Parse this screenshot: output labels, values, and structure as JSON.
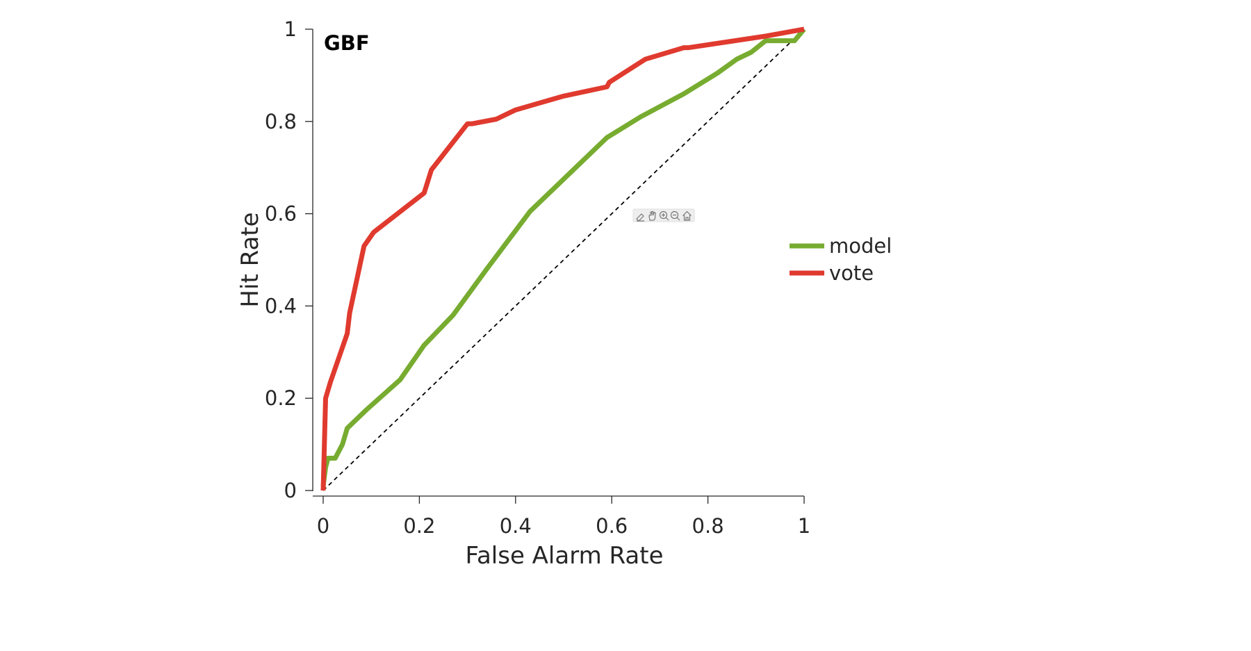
{
  "toolbar": {
    "icons": [
      "brush-icon",
      "pan-hand-icon",
      "zoom-in-icon",
      "zoom-out-icon",
      "home-icon"
    ]
  },
  "chart_data": {
    "type": "line",
    "title": "GBF",
    "xlabel": "False Alarm Rate",
    "ylabel": "Hit Rate",
    "xlim": [
      0,
      1
    ],
    "ylim": [
      0,
      1
    ],
    "xticks": [
      "0",
      "0.2",
      "0.4",
      "0.6",
      "0.8",
      "1"
    ],
    "yticks": [
      "0",
      "0.2",
      "0.4",
      "0.6",
      "0.8",
      "1"
    ],
    "grid": false,
    "legend_position": "right",
    "reference_line": {
      "style": "dashed",
      "color": "#000000",
      "points": [
        [
          0,
          0
        ],
        [
          1,
          1
        ]
      ]
    },
    "series": [
      {
        "name": "model",
        "color": "#77AC30",
        "points": [
          [
            0,
            0.01
          ],
          [
            0.005,
            0.05
          ],
          [
            0.01,
            0.07
          ],
          [
            0.025,
            0.07
          ],
          [
            0.04,
            0.1
          ],
          [
            0.05,
            0.135
          ],
          [
            0.07,
            0.155
          ],
          [
            0.09,
            0.175
          ],
          [
            0.16,
            0.24
          ],
          [
            0.21,
            0.315
          ],
          [
            0.27,
            0.38
          ],
          [
            0.34,
            0.48
          ],
          [
            0.43,
            0.605
          ],
          [
            0.51,
            0.685
          ],
          [
            0.59,
            0.765
          ],
          [
            0.66,
            0.81
          ],
          [
            0.75,
            0.86
          ],
          [
            0.82,
            0.905
          ],
          [
            0.86,
            0.935
          ],
          [
            0.89,
            0.95
          ],
          [
            0.92,
            0.975
          ],
          [
            0.98,
            0.975
          ],
          [
            1.0,
            1.0
          ]
        ]
      },
      {
        "name": "vote",
        "color": "#E03A2F",
        "points": [
          [
            0,
            0.0
          ],
          [
            0.005,
            0.2
          ],
          [
            0.015,
            0.235
          ],
          [
            0.05,
            0.34
          ],
          [
            0.055,
            0.385
          ],
          [
            0.085,
            0.53
          ],
          [
            0.105,
            0.56
          ],
          [
            0.21,
            0.645
          ],
          [
            0.225,
            0.695
          ],
          [
            0.3,
            0.795
          ],
          [
            0.31,
            0.795
          ],
          [
            0.36,
            0.805
          ],
          [
            0.38,
            0.815
          ],
          [
            0.4,
            0.825
          ],
          [
            0.5,
            0.855
          ],
          [
            0.59,
            0.875
          ],
          [
            0.595,
            0.885
          ],
          [
            0.67,
            0.935
          ],
          [
            0.75,
            0.96
          ],
          [
            0.76,
            0.96
          ],
          [
            0.92,
            0.985
          ],
          [
            1.0,
            1.0
          ]
        ]
      }
    ]
  }
}
